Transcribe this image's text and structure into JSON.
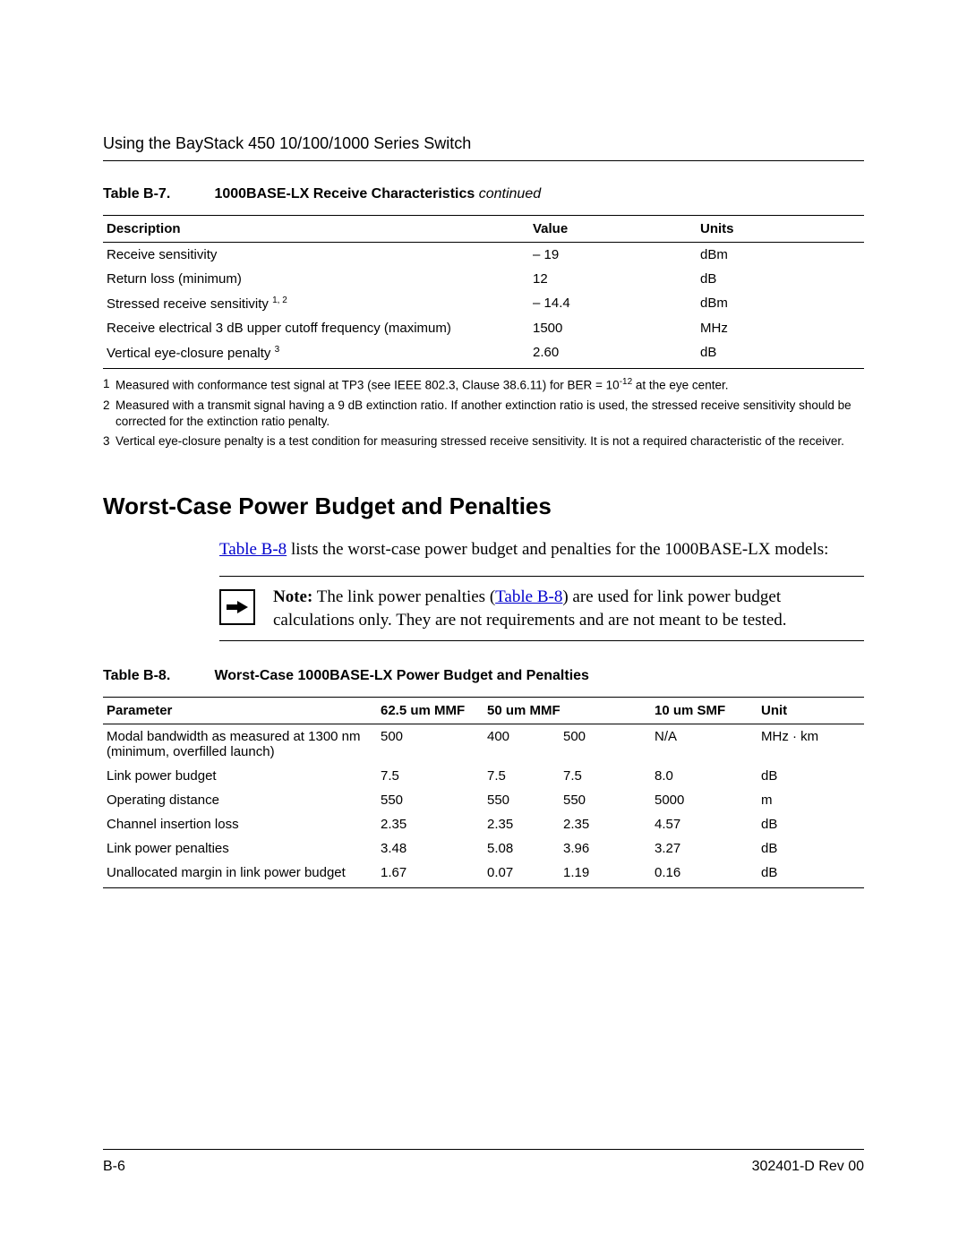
{
  "header_title": "Using the BayStack 450 10/100/1000 Series Switch",
  "table7": {
    "label": "Table B-7.",
    "title": "1000BASE-LX Receive Characteristics",
    "continued": "continued",
    "columns": [
      "Description",
      "Value",
      "Units"
    ],
    "rows": [
      {
        "desc": "Receive sensitivity",
        "sup": "",
        "value": "– 19",
        "units": "dBm"
      },
      {
        "desc": "Return loss (minimum)",
        "sup": "",
        "value": "12",
        "units": "dB"
      },
      {
        "desc": "Stressed receive sensitivity ",
        "sup": "1, 2",
        "value": "– 14.4",
        "units": "dBm"
      },
      {
        "desc": "Receive electrical 3 dB upper cutoff frequency (maximum)",
        "sup": "",
        "value": "1500",
        "units": "MHz"
      },
      {
        "desc": "Vertical eye-closure penalty ",
        "sup": "3",
        "value": "2.60",
        "units": "dB"
      }
    ],
    "footnotes": [
      {
        "num": "1",
        "text_a": "Measured with conformance test signal at TP3 (see IEEE 802.3, Clause 38.6.11) for BER = 10",
        "sup": "-12",
        "text_b": " at the eye center."
      },
      {
        "num": "2",
        "text_a": "Measured with a transmit signal having a 9 dB extinction ratio. If another extinction ratio is used, the stressed receive sensitivity should be corrected for the extinction ratio penalty.",
        "sup": "",
        "text_b": ""
      },
      {
        "num": "3",
        "text_a": "Vertical eye-closure penalty is a test condition for measuring stressed receive sensitivity. It is not a required characteristic of the receiver.",
        "sup": "",
        "text_b": ""
      }
    ]
  },
  "section_title": "Worst-Case Power Budget and Penalties",
  "intro": {
    "link": "Table B-8",
    "rest": " lists the worst-case power budget and penalties for the 1000BASE-LX models:"
  },
  "note": {
    "bold": "Note:",
    "a": " The link power penalties (",
    "link": "Table B-8",
    "b": ") are used for link power budget calculations only. They are not requirements and are not meant to be tested."
  },
  "table8": {
    "label": "Table B-8.",
    "title": "Worst-Case 1000BASE-LX Power Budget and Penalties",
    "columns": [
      "Parameter",
      "62.5 um MMF",
      "50 um MMF",
      "",
      "10 um SMF",
      "Unit"
    ],
    "rows": [
      {
        "param": "Modal bandwidth as measured at 1300 nm (minimum, overfilled launch)",
        "c1": "500",
        "c2": "400",
        "c3": "500",
        "c4": "N/A",
        "unit": "MHz · km"
      },
      {
        "param": "Link power budget",
        "c1": "7.5",
        "c2": "7.5",
        "c3": "7.5",
        "c4": "8.0",
        "unit": "dB"
      },
      {
        "param": "Operating distance",
        "c1": "550",
        "c2": "550",
        "c3": "550",
        "c4": "5000",
        "unit": "m"
      },
      {
        "param": "Channel insertion loss",
        "c1": "2.35",
        "c2": "2.35",
        "c3": "2.35",
        "c4": "4.57",
        "unit": "dB"
      },
      {
        "param": "Link power penalties",
        "c1": "3.48",
        "c2": "5.08",
        "c3": "3.96",
        "c4": "3.27",
        "unit": "dB"
      },
      {
        "param": "Unallocated margin in link power budget",
        "c1": "1.67",
        "c2": "0.07",
        "c3": "1.19",
        "c4": "0.16",
        "unit": "dB"
      }
    ]
  },
  "footer": {
    "left": "B-6",
    "right": "302401-D Rev 00"
  }
}
